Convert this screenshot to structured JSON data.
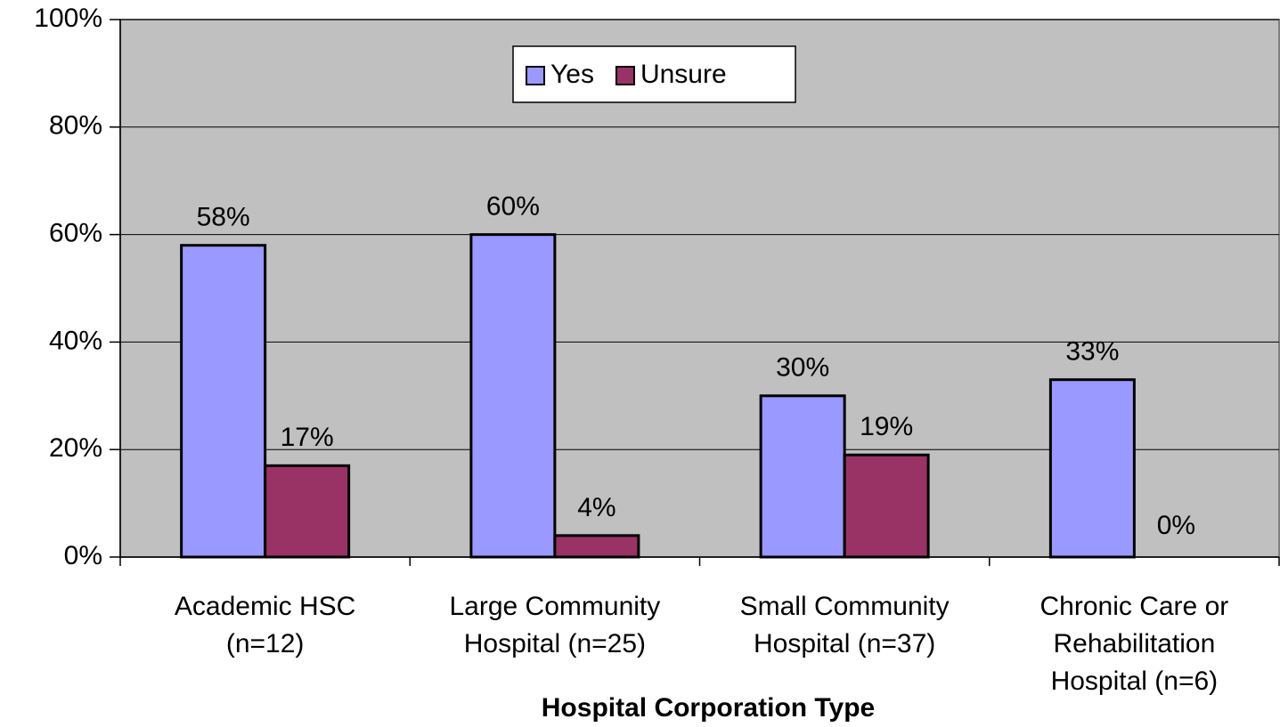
{
  "chart_data": {
    "type": "bar",
    "x_label": "Hospital Corporation Type",
    "categories": [
      "Academic HSC\n(n=12)",
      "Large Community\nHospital (n=25)",
      "Small Community\nHospital (n=37)",
      "Chronic Care or\nRehabilitation\nHospital (n=6)"
    ],
    "series": [
      {
        "name": "Yes",
        "color": "#9999ff",
        "values": [
          58,
          60,
          30,
          33
        ],
        "value_labels": [
          "58%",
          "60%",
          "30%",
          "33%"
        ]
      },
      {
        "name": "Unsure",
        "color": "#993366",
        "values": [
          17,
          4,
          19,
          0
        ],
        "value_labels": [
          "17%",
          "4%",
          "19%",
          "0%"
        ]
      }
    ],
    "ylim": [
      0,
      100
    ],
    "yticks": [
      {
        "value": 0,
        "label": "0%"
      },
      {
        "value": 20,
        "label": "20%"
      },
      {
        "value": 40,
        "label": "40%"
      },
      {
        "value": 60,
        "label": "60%"
      },
      {
        "value": 80,
        "label": "80%"
      },
      {
        "value": 100,
        "label": "100%"
      }
    ],
    "grid": true,
    "legend": "top"
  }
}
